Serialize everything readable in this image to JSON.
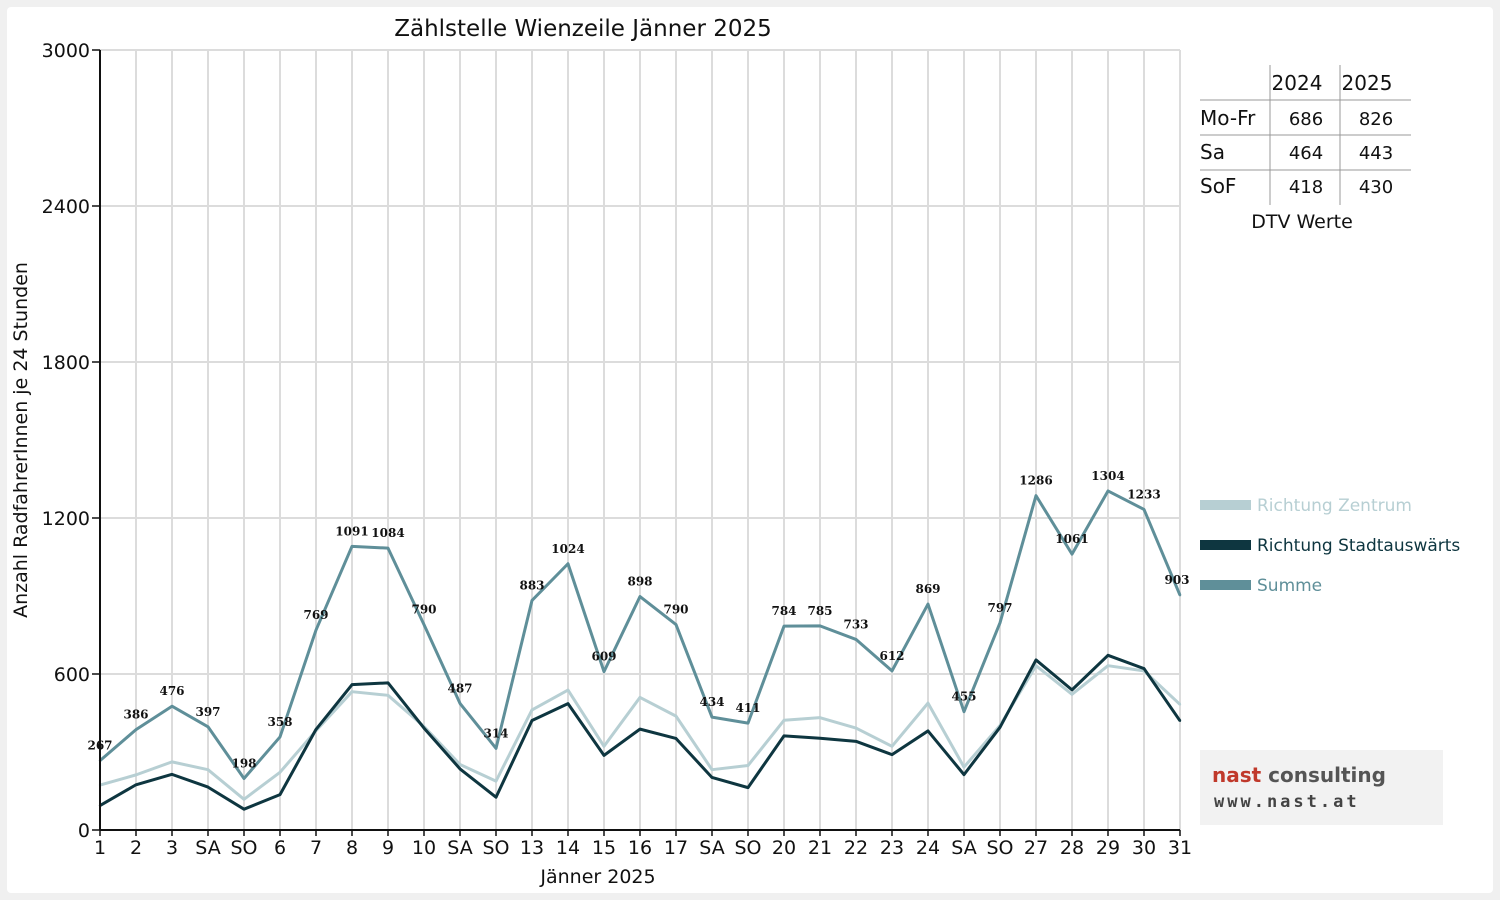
{
  "chart_data": {
    "type": "line",
    "title": "Zählstelle Wienzeile Jänner 2025",
    "xlabel": "Jänner 2025",
    "ylabel": "Anzahl RadfahrerInnen je 24 Stunden",
    "ylim": [
      0,
      3000
    ],
    "yticks": [
      "0",
      "600",
      "1200",
      "1800",
      "2400",
      "3000"
    ],
    "x": [
      1,
      2,
      3,
      4,
      5,
      6,
      7,
      8,
      9,
      10,
      11,
      12,
      13,
      14,
      15,
      16,
      17,
      18,
      19,
      20,
      21,
      22,
      23,
      24,
      25,
      26,
      27,
      28,
      29,
      30,
      31
    ],
    "categories": [
      "1",
      "2",
      "3",
      "SA",
      "SO",
      "6",
      "7",
      "8",
      "9",
      "10",
      "SA",
      "SO",
      "13",
      "14",
      "15",
      "16",
      "17",
      "SA",
      "SO",
      "20",
      "21",
      "22",
      "23",
      "24",
      "SA",
      "SO",
      "27",
      "28",
      "29",
      "30",
      "31"
    ],
    "highlight_categories": [
      "SO"
    ],
    "highlight_color": "#e00000",
    "grid": true,
    "legend_position": "right",
    "series": [
      {
        "name": "Richtung Zentrum",
        "color": "#b7cfd3",
        "values": [
          173,
          212,
          262,
          232,
          118,
          222,
          382,
          532,
          518,
          398,
          252,
          188,
          462,
          538,
          322,
          510,
          438,
          232,
          248,
          422,
          432,
          392,
          322,
          488,
          242,
          402,
          632,
          522,
          632,
          612,
          483
        ]
      },
      {
        "name": "Richtung Stadtauswärts",
        "color": "#0e3640",
        "values": [
          94,
          174,
          214,
          165,
          80,
          136,
          387,
          559,
          566,
          392,
          235,
          126,
          421,
          486,
          287,
          388,
          352,
          202,
          163,
          362,
          353,
          341,
          290,
          381,
          213,
          395,
          654,
          539,
          672,
          621,
          420
        ]
      },
      {
        "name": "Summe",
        "color": "#5f8f99",
        "values": [
          267,
          386,
          476,
          397,
          198,
          358,
          769,
          1091,
          1084,
          790,
          487,
          314,
          883,
          1024,
          609,
          898,
          790,
          434,
          411,
          784,
          785,
          733,
          612,
          869,
          455,
          797,
          1286,
          1061,
          1304,
          1233,
          903
        ]
      }
    ],
    "data_labels": [
      "267",
      "386",
      "476",
      "397",
      "198",
      "358",
      "769",
      "1091",
      "1084",
      "790",
      "487",
      "314",
      "883",
      "1024",
      "609",
      "898",
      "790",
      "434",
      "411",
      "784",
      "785",
      "733",
      "612",
      "869",
      "455",
      "797",
      "1286",
      "1061",
      "1304",
      "1233",
      "903"
    ]
  },
  "dtv_table": {
    "columns": [
      "2024",
      "2025"
    ],
    "rows": [
      {
        "label": "Mo-Fr",
        "v2024": "686",
        "v2025": "826"
      },
      {
        "label": "Sa",
        "v2024": "464",
        "v2025": "443"
      },
      {
        "label": "SoF",
        "v2024": "418",
        "v2025": "430"
      }
    ],
    "caption": "DTV Werte"
  },
  "logo": {
    "line1a": "nast",
    "line1b": " consulting",
    "line2": "www.nast.at"
  }
}
